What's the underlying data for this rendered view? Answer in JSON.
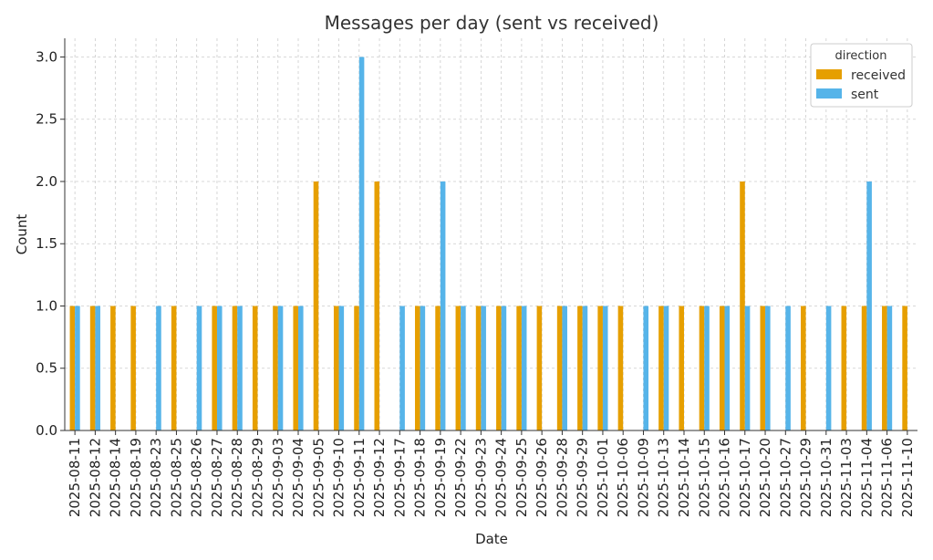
{
  "chart_data": {
    "type": "bar",
    "title": "Messages per day (sent vs received)",
    "xlabel": "Date",
    "ylabel": "Count",
    "ylim": [
      0,
      3.15
    ],
    "yticks": [
      "0.0",
      "0.5",
      "1.0",
      "1.5",
      "2.0",
      "2.5",
      "3.0"
    ],
    "grid": true,
    "legend": {
      "title": "direction",
      "placement": "top-right"
    },
    "categories": [
      "2025-08-11",
      "2025-08-12",
      "2025-08-14",
      "2025-08-19",
      "2025-08-23",
      "2025-08-25",
      "2025-08-26",
      "2025-08-27",
      "2025-08-28",
      "2025-08-29",
      "2025-09-03",
      "2025-09-04",
      "2025-09-05",
      "2025-09-10",
      "2025-09-11",
      "2025-09-12",
      "2025-09-17",
      "2025-09-18",
      "2025-09-19",
      "2025-09-22",
      "2025-09-23",
      "2025-09-24",
      "2025-09-25",
      "2025-09-26",
      "2025-09-28",
      "2025-09-29",
      "2025-10-01",
      "2025-10-06",
      "2025-10-09",
      "2025-10-13",
      "2025-10-14",
      "2025-10-15",
      "2025-10-16",
      "2025-10-17",
      "2025-10-20",
      "2025-10-27",
      "2025-10-29",
      "2025-10-31",
      "2025-11-03",
      "2025-11-04",
      "2025-11-06",
      "2025-11-10"
    ],
    "series": [
      {
        "name": "received",
        "color": "#E69F00",
        "values": [
          1,
          1,
          1,
          1,
          0,
          1,
          0,
          1,
          1,
          1,
          1,
          1,
          2,
          1,
          1,
          2,
          0,
          1,
          1,
          1,
          1,
          1,
          1,
          1,
          1,
          1,
          1,
          1,
          0,
          1,
          1,
          1,
          1,
          2,
          1,
          0,
          1,
          0,
          1,
          1,
          1,
          1
        ]
      },
      {
        "name": "sent",
        "color": "#56B4E9",
        "values": [
          1,
          1,
          0,
          0,
          1,
          0,
          1,
          1,
          1,
          0,
          1,
          1,
          0,
          1,
          3,
          0,
          1,
          1,
          2,
          1,
          1,
          1,
          1,
          0,
          1,
          1,
          1,
          0,
          1,
          1,
          0,
          1,
          1,
          1,
          1,
          1,
          0,
          1,
          0,
          2,
          1,
          0
        ]
      }
    ]
  }
}
